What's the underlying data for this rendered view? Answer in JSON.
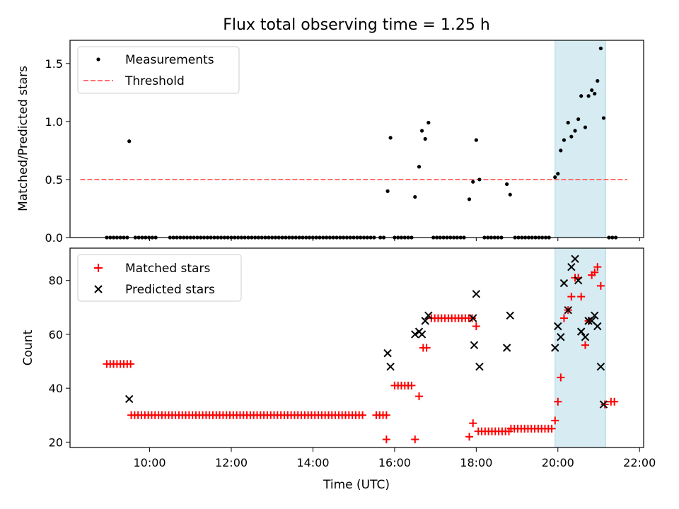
{
  "chart_data": {
    "type": "scatter",
    "title": "Flux total observing time = 1.25 h",
    "xlabel": "Time (UTC)",
    "x_unit": "hours UTC",
    "xlim": [
      8.05,
      22.1
    ],
    "x_ticks": [
      {
        "value": 10,
        "label": "10:00"
      },
      {
        "value": 12,
        "label": "12:00"
      },
      {
        "value": 14,
        "label": "14:00"
      },
      {
        "value": 16,
        "label": "16:00"
      },
      {
        "value": 18,
        "label": "18:00"
      },
      {
        "value": 20,
        "label": "20:00"
      },
      {
        "value": 22,
        "label": "22:00"
      }
    ],
    "highlight_span": {
      "x": [
        19.93,
        21.17
      ],
      "color": "#add8e6"
    },
    "grid": false,
    "top_panel": {
      "ylabel": "Matched/Predicted stars",
      "ylim": [
        0,
        1.7
      ],
      "y_ticks": [
        {
          "value": 0.0,
          "label": "0.0"
        },
        {
          "value": 0.5,
          "label": "0.5"
        },
        {
          "value": 1.0,
          "label": "1.0"
        },
        {
          "value": 1.5,
          "label": "1.5"
        }
      ],
      "legend": {
        "placement": "upper-left",
        "entries": [
          "Measurements",
          "Threshold"
        ]
      },
      "threshold": {
        "name": "Threshold",
        "y": 0.5,
        "x": [
          8.3,
          21.7
        ],
        "color": "#ff7070"
      },
      "measurements": {
        "name": "Measurements",
        "color": "#000000",
        "points": [
          [
            9.5,
            0.83
          ],
          [
            15.83,
            0.4
          ],
          [
            15.9,
            0.86
          ],
          [
            16.5,
            0.35
          ],
          [
            16.6,
            0.61
          ],
          [
            16.67,
            0.92
          ],
          [
            16.75,
            0.85
          ],
          [
            16.83,
            0.99
          ],
          [
            17.83,
            0.33
          ],
          [
            17.92,
            0.48
          ],
          [
            18.0,
            0.84
          ],
          [
            18.08,
            0.5
          ],
          [
            18.75,
            0.46
          ],
          [
            18.83,
            0.37
          ],
          [
            19.93,
            0.52
          ],
          [
            20.0,
            0.55
          ],
          [
            20.07,
            0.75
          ],
          [
            20.15,
            0.84
          ],
          [
            20.25,
            0.99
          ],
          [
            20.33,
            0.87
          ],
          [
            20.42,
            0.92
          ],
          [
            20.5,
            1.02
          ],
          [
            20.57,
            1.22
          ],
          [
            20.67,
            0.95
          ],
          [
            20.75,
            1.22
          ],
          [
            20.83,
            1.27
          ],
          [
            20.9,
            1.24
          ],
          [
            20.97,
            1.35
          ],
          [
            21.05,
            1.63
          ],
          [
            21.12,
            1.03
          ]
        ],
        "zero_ranges": [
          [
            8.95,
            9.45,
            0.0833
          ],
          [
            9.65,
            10.2,
            0.0833
          ],
          [
            10.5,
            15.55,
            0.0833
          ],
          [
            15.65,
            15.8,
            0.0833
          ],
          [
            16.0,
            16.45,
            0.0833
          ],
          [
            16.95,
            17.75,
            0.0833
          ],
          [
            18.2,
            18.65,
            0.0833
          ],
          [
            18.95,
            19.85,
            0.0833
          ],
          [
            21.25,
            21.45,
            0.0833
          ]
        ]
      }
    },
    "bottom_panel": {
      "ylabel": "Count",
      "ylim": [
        18,
        92
      ],
      "y_ticks": [
        {
          "value": 20,
          "label": "20"
        },
        {
          "value": 40,
          "label": "40"
        },
        {
          "value": 60,
          "label": "60"
        },
        {
          "value": 80,
          "label": "80"
        }
      ],
      "legend": {
        "placement": "upper-left",
        "entries": [
          "Matched stars",
          "Predicted stars"
        ]
      },
      "matched": {
        "name": "Matched stars",
        "color": "#ff0000",
        "runs": [
          [
            8.95,
            9.55,
            49
          ],
          [
            9.55,
            15.25,
            30
          ],
          [
            15.55,
            15.8,
            30
          ],
          [
            16.0,
            16.45,
            41
          ],
          [
            16.7,
            16.8,
            55
          ],
          [
            16.9,
            17.9,
            66
          ],
          [
            18.05,
            18.85,
            24
          ],
          [
            18.85,
            19.85,
            25
          ],
          [
            21.3,
            21.45,
            35
          ]
        ],
        "points": [
          [
            15.8,
            21
          ],
          [
            16.5,
            21
          ],
          [
            16.6,
            37
          ],
          [
            17.92,
            27
          ],
          [
            17.83,
            22
          ],
          [
            18.0,
            63
          ],
          [
            19.93,
            28
          ],
          [
            20.0,
            35
          ],
          [
            20.07,
            44
          ],
          [
            20.15,
            66
          ],
          [
            20.25,
            69
          ],
          [
            20.33,
            74
          ],
          [
            20.42,
            81
          ],
          [
            20.5,
            81
          ],
          [
            20.57,
            74
          ],
          [
            20.67,
            56
          ],
          [
            20.75,
            65
          ],
          [
            20.83,
            82
          ],
          [
            20.9,
            83
          ],
          [
            20.97,
            85
          ],
          [
            21.05,
            78
          ],
          [
            21.15,
            34
          ]
        ]
      },
      "predicted": {
        "name": "Predicted stars",
        "color": "#000000",
        "points": [
          [
            9.5,
            36
          ],
          [
            15.83,
            53
          ],
          [
            15.9,
            48
          ],
          [
            16.5,
            60
          ],
          [
            16.6,
            61
          ],
          [
            16.67,
            60
          ],
          [
            16.75,
            65
          ],
          [
            16.83,
            67
          ],
          [
            17.92,
            66
          ],
          [
            17.95,
            56
          ],
          [
            18.0,
            75
          ],
          [
            18.08,
            48
          ],
          [
            18.75,
            55
          ],
          [
            18.83,
            67
          ],
          [
            19.93,
            55
          ],
          [
            20.0,
            63
          ],
          [
            20.07,
            59
          ],
          [
            20.15,
            79
          ],
          [
            20.25,
            69
          ],
          [
            20.33,
            85
          ],
          [
            20.42,
            88
          ],
          [
            20.5,
            80
          ],
          [
            20.57,
            61
          ],
          [
            20.67,
            59
          ],
          [
            20.75,
            65
          ],
          [
            20.83,
            65
          ],
          [
            20.9,
            67
          ],
          [
            20.97,
            63
          ],
          [
            21.05,
            48
          ],
          [
            21.12,
            34
          ]
        ]
      }
    }
  }
}
